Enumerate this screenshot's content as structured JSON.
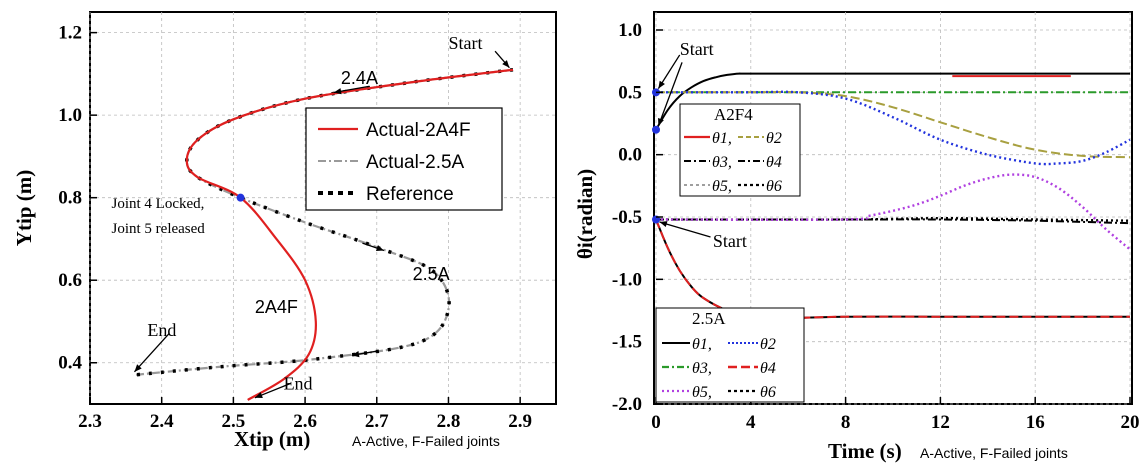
{
  "colors": {
    "red": "#e02020",
    "gray": "#9a9a9a",
    "black": "#000000",
    "blue": "#2233dd",
    "green": "#2a9a2a",
    "olive": "#a8a040",
    "purple": "#b040e0"
  },
  "chart_data": [
    {
      "type": "line",
      "xlabel": "Xtip (m)",
      "xlabel_suffix": "A-Active, F-Failed joints",
      "ylabel": "Ytip (m)",
      "xlim": [
        2.3,
        2.95
      ],
      "ylim": [
        0.3,
        1.25
      ],
      "xticks": [
        "2.3",
        "2.4",
        "2.5",
        "2.6",
        "2.7",
        "2.8",
        "2.9"
      ],
      "yticks": [
        "0.4",
        "0.6",
        "0.8",
        "1.0",
        "1.2"
      ],
      "legend": [
        {
          "name": "Actual-2A4F",
          "style": "solid",
          "color": "#e02020"
        },
        {
          "name": "Actual-2.5A",
          "style": "dashdot",
          "color": "#9a9a9a"
        },
        {
          "name": "Reference",
          "style": "dotted",
          "color": "#000000"
        }
      ],
      "series": [
        {
          "name": "Reference",
          "x": [
            2.89,
            2.75,
            2.6,
            2.5,
            2.45,
            2.435,
            2.45,
            2.51,
            2.6,
            2.7,
            2.78,
            2.8,
            2.76,
            2.62,
            2.48,
            2.36
          ],
          "y": [
            1.11,
            1.08,
            1.04,
            0.99,
            0.94,
            0.89,
            0.85,
            0.8,
            0.74,
            0.68,
            0.62,
            0.53,
            0.45,
            0.41,
            0.39,
            0.37
          ]
        },
        {
          "name": "Actual-2A4F",
          "x": [
            2.89,
            2.75,
            2.6,
            2.5,
            2.45,
            2.435,
            2.45,
            2.51,
            2.56,
            2.6,
            2.615,
            2.605,
            2.57,
            2.52
          ],
          "y": [
            1.11,
            1.08,
            1.04,
            0.99,
            0.94,
            0.89,
            0.85,
            0.8,
            0.7,
            0.6,
            0.5,
            0.42,
            0.36,
            0.31
          ]
        }
      ],
      "annotations": [
        {
          "text": "Start",
          "x": 2.8,
          "y": 1.16
        },
        {
          "text": "2.4A",
          "x": 2.65,
          "y": 1.075
        },
        {
          "text": "Joint 4 Locked,",
          "x": 2.33,
          "y": 0.775
        },
        {
          "text": "Joint 5 released",
          "x": 2.33,
          "y": 0.715
        },
        {
          "text": "2.5A",
          "x": 2.75,
          "y": 0.6
        },
        {
          "text": "2A4F",
          "x": 2.53,
          "y": 0.52
        },
        {
          "text": "End",
          "x": 2.38,
          "y": 0.465
        },
        {
          "text": "End",
          "x": 2.57,
          "y": 0.335
        }
      ]
    },
    {
      "type": "line",
      "xlabel": "Time (s)",
      "xlabel_suffix": "A-Active, F-Failed joints",
      "ylabel": "θi(radian)",
      "xlim": [
        0,
        20
      ],
      "ylim": [
        -2.0,
        1.0
      ],
      "xticks": [
        "0",
        "4",
        "8",
        "12",
        "16",
        "20"
      ],
      "yticks": [
        "1.0",
        "0.5",
        "0.0",
        "-0.5",
        "-1.0",
        "-1.5",
        "-2.0"
      ],
      "legend_groups": [
        {
          "title": "A2F4",
          "entries": [
            [
              "θ1,",
              "θ2"
            ],
            [
              "θ3,",
              "θ4"
            ],
            [
              "θ5,",
              "θ6"
            ]
          ]
        },
        {
          "title": "2.5A",
          "entries": [
            [
              "θ1,",
              "θ2"
            ],
            [
              "θ3,",
              "θ4"
            ],
            [
              "θ5,",
              "θ6"
            ]
          ]
        }
      ],
      "series": [
        {
          "color": "#000000",
          "style": "solid",
          "x": [
            0,
            0.5,
            1,
            1.5,
            2,
            2.5,
            3,
            3.5,
            4,
            8,
            12,
            16,
            20
          ],
          "y": [
            0.2,
            0.36,
            0.47,
            0.54,
            0.59,
            0.62,
            0.64,
            0.65,
            0.65,
            0.65,
            0.65,
            0.65,
            0.65
          ]
        },
        {
          "color": "#e02020",
          "style": "solid",
          "x": [
            12.5,
            17.5
          ],
          "y": [
            0.63,
            0.63
          ]
        },
        {
          "color": "#2a9a2a",
          "style": "dashdot",
          "x": [
            0,
            4,
            8,
            12,
            16,
            20
          ],
          "y": [
            0.5,
            0.5,
            0.5,
            0.5,
            0.5,
            0.5
          ]
        },
        {
          "color": "#a8a040",
          "style": "dashed",
          "x": [
            0,
            4,
            6,
            8,
            10,
            12,
            14,
            16,
            18,
            20
          ],
          "y": [
            0.5,
            0.5,
            0.5,
            0.47,
            0.38,
            0.26,
            0.14,
            0.04,
            -0.01,
            -0.02
          ]
        },
        {
          "color": "#2233dd",
          "style": "dotted",
          "x": [
            0,
            2,
            4,
            6,
            8,
            10,
            12,
            14,
            16,
            17,
            18,
            19,
            20
          ],
          "y": [
            0.5,
            0.5,
            0.5,
            0.5,
            0.45,
            0.3,
            0.12,
            0,
            -0.07,
            -0.07,
            -0.05,
            0.02,
            0.12
          ]
        },
        {
          "color": "#000000",
          "style": "dashdot",
          "x": [
            0,
            8,
            12,
            16,
            20
          ],
          "y": [
            -0.52,
            -0.52,
            -0.52,
            -0.53,
            -0.55
          ]
        },
        {
          "color": "#000000",
          "style": "dotted",
          "x": [
            0,
            8,
            12,
            16,
            20
          ],
          "y": [
            -0.52,
            -0.52,
            -0.51,
            -0.52,
            -0.53
          ]
        },
        {
          "color": "#b040e0",
          "style": "dotted",
          "x": [
            0,
            8,
            9,
            10,
            11,
            12,
            13,
            14,
            15,
            16,
            17,
            18,
            19,
            20
          ],
          "y": [
            -0.52,
            -0.52,
            -0.49,
            -0.45,
            -0.4,
            -0.33,
            -0.25,
            -0.19,
            -0.16,
            -0.18,
            -0.27,
            -0.42,
            -0.6,
            -0.76
          ]
        },
        {
          "color": "#000000",
          "style": "solid",
          "x": [
            0,
            0.5,
            1,
            1.5,
            2,
            3,
            4,
            5,
            6,
            8,
            12,
            16,
            20
          ],
          "y": [
            -0.52,
            -0.75,
            -0.93,
            -1.06,
            -1.15,
            -1.25,
            -1.3,
            -1.32,
            -1.31,
            -1.3,
            -1.3,
            -1.3,
            -1.3
          ]
        },
        {
          "color": "#e02020",
          "style": "dashed",
          "x": [
            0,
            0.5,
            1,
            1.5,
            2,
            3,
            4,
            5,
            6,
            8,
            12,
            16,
            20
          ],
          "y": [
            -0.52,
            -0.75,
            -0.93,
            -1.06,
            -1.15,
            -1.25,
            -1.3,
            -1.32,
            -1.31,
            -1.3,
            -1.3,
            -1.3,
            -1.3
          ]
        }
      ],
      "annotations": [
        {
          "text": "Start",
          "x": 1.0,
          "y": 0.8
        },
        {
          "text": "Start",
          "x": 2.4,
          "y": -0.74
        }
      ]
    }
  ]
}
